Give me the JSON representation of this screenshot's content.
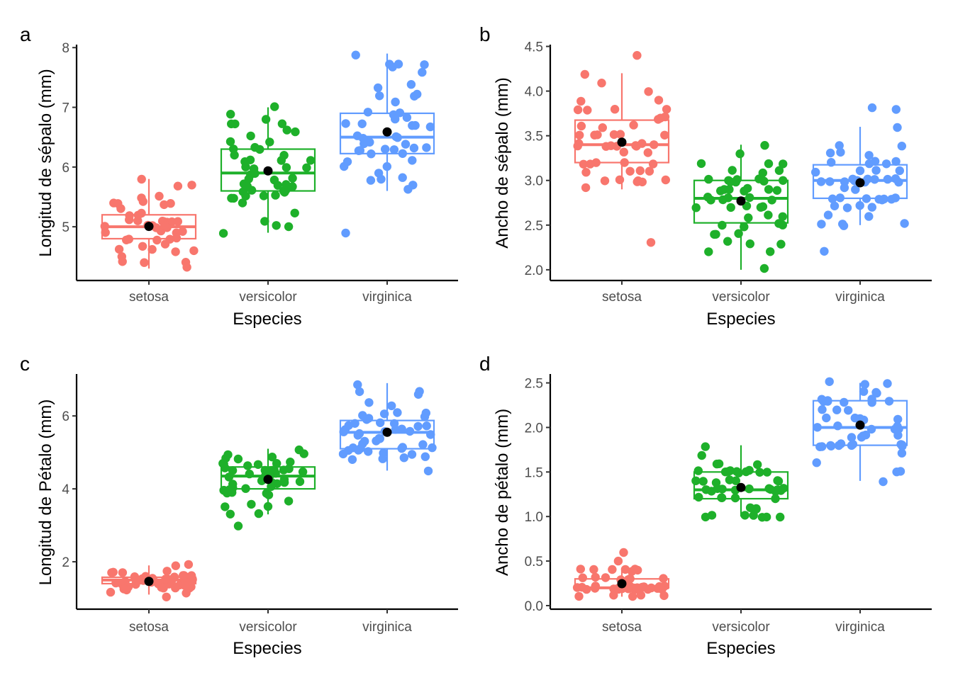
{
  "colors": {
    "setosa": "#F8766D",
    "versicolor": "#1EB02A",
    "virginica": "#619CFF",
    "mean": "#000000"
  },
  "chart_data": [
    {
      "panel": "a",
      "type": "boxplot",
      "xlabel": "Especies",
      "ylabel": "Longitud de sépalo (mm)",
      "categories": [
        "setosa",
        "versicolor",
        "virginica"
      ],
      "ylim": [
        4.1,
        8.05
      ],
      "yticks": [
        5,
        6,
        7,
        8
      ],
      "ytick_labels": [
        "5",
        "6",
        "7",
        "8"
      ],
      "boxes": [
        {
          "name": "setosa",
          "q1": 4.8,
          "median": 5.0,
          "q3": 5.2,
          "whisker_low": 4.3,
          "whisker_high": 5.8,
          "mean": 5.006
        },
        {
          "name": "versicolor",
          "q1": 5.6,
          "median": 5.9,
          "q3": 6.3,
          "whisker_low": 4.9,
          "whisker_high": 7.0,
          "mean": 5.936
        },
        {
          "name": "virginica",
          "q1": 6.225,
          "median": 6.5,
          "q3": 6.9,
          "whisker_low": 5.6,
          "whisker_high": 7.9,
          "mean": 6.588
        }
      ],
      "points": {
        "setosa": [
          5.1,
          4.9,
          4.7,
          4.6,
          5.0,
          5.4,
          4.6,
          5.0,
          4.4,
          4.9,
          5.4,
          4.8,
          4.8,
          4.3,
          5.8,
          5.7,
          5.4,
          5.1,
          5.7,
          5.1,
          5.4,
          5.1,
          4.6,
          5.1,
          4.8,
          5.0,
          5.0,
          5.2,
          5.2,
          4.7,
          4.8,
          5.4,
          5.2,
          5.5,
          4.9,
          5.0,
          5.5,
          4.9,
          4.4,
          5.1,
          5.0,
          4.5,
          4.4,
          5.0,
          5.1,
          4.8,
          5.1,
          4.6,
          5.3,
          5.0
        ],
        "versicolor": [
          7.0,
          6.4,
          6.9,
          5.5,
          6.5,
          5.7,
          6.3,
          4.9,
          6.6,
          5.2,
          5.0,
          5.9,
          6.0,
          6.1,
          5.6,
          6.7,
          5.6,
          5.8,
          6.2,
          5.6,
          5.9,
          6.1,
          6.3,
          6.1,
          6.4,
          6.6,
          6.8,
          6.7,
          6.0,
          5.7,
          5.5,
          5.5,
          5.8,
          6.0,
          5.4,
          6.0,
          6.7,
          6.3,
          5.6,
          5.5,
          5.5,
          6.1,
          5.8,
          5.0,
          5.6,
          5.7,
          5.7,
          6.2,
          5.1,
          5.7
        ],
        "virginica": [
          6.3,
          5.8,
          7.1,
          6.3,
          6.5,
          7.6,
          4.9,
          7.3,
          6.7,
          7.2,
          6.5,
          6.4,
          6.8,
          5.7,
          5.8,
          6.4,
          6.5,
          7.7,
          7.7,
          6.0,
          6.9,
          5.6,
          7.7,
          6.3,
          6.7,
          7.2,
          6.2,
          6.1,
          6.4,
          7.2,
          7.4,
          7.9,
          6.4,
          6.3,
          6.1,
          7.7,
          6.3,
          6.4,
          6.0,
          6.9,
          6.7,
          6.9,
          5.8,
          6.8,
          6.7,
          6.7,
          6.3,
          6.5,
          6.2,
          5.9
        ]
      }
    },
    {
      "panel": "b",
      "type": "boxplot",
      "xlabel": "Especies",
      "ylabel": "Ancho de sépalo (mm)",
      "categories": [
        "setosa",
        "versicolor",
        "virginica"
      ],
      "ylim": [
        1.88,
        4.52
      ],
      "yticks": [
        2.0,
        2.5,
        3.0,
        3.5,
        4.0,
        4.5
      ],
      "ytick_labels": [
        "2.0",
        "2.5",
        "3.0",
        "3.5",
        "4.0",
        "4.5"
      ],
      "boxes": [
        {
          "name": "setosa",
          "q1": 3.2,
          "median": 3.4,
          "q3": 3.675,
          "whisker_low": 2.9,
          "whisker_high": 4.2,
          "mean": 3.428
        },
        {
          "name": "versicolor",
          "q1": 2.525,
          "median": 2.8,
          "q3": 3.0,
          "whisker_low": 2.0,
          "whisker_high": 3.4,
          "mean": 2.77
        },
        {
          "name": "virginica",
          "q1": 2.8,
          "median": 3.0,
          "q3": 3.175,
          "whisker_low": 2.5,
          "whisker_high": 3.6,
          "mean": 2.974
        }
      ],
      "points": {
        "setosa": [
          3.5,
          3.0,
          3.2,
          3.1,
          3.6,
          3.9,
          3.4,
          3.4,
          2.9,
          3.1,
          3.7,
          3.4,
          3.0,
          3.0,
          4.0,
          4.4,
          3.9,
          3.5,
          3.8,
          3.8,
          3.4,
          3.7,
          3.6,
          3.3,
          3.4,
          3.0,
          3.4,
          3.5,
          3.4,
          3.2,
          3.1,
          3.4,
          4.1,
          4.2,
          3.1,
          3.2,
          3.5,
          3.6,
          3.0,
          3.4,
          3.5,
          2.3,
          3.2,
          3.5,
          3.8,
          3.0,
          3.8,
          3.2,
          3.7,
          3.3
        ],
        "versicolor": [
          3.2,
          3.2,
          3.1,
          2.3,
          2.8,
          2.8,
          3.3,
          2.4,
          2.9,
          2.7,
          2.0,
          3.0,
          2.2,
          2.9,
          2.9,
          3.1,
          3.0,
          2.7,
          2.2,
          2.5,
          3.2,
          2.8,
          2.5,
          2.8,
          2.9,
          3.0,
          2.8,
          3.0,
          2.9,
          2.6,
          2.4,
          2.4,
          2.7,
          2.7,
          3.0,
          3.4,
          3.1,
          2.3,
          3.0,
          2.5,
          2.6,
          3.0,
          2.6,
          2.3,
          2.7,
          3.0,
          2.9,
          2.9,
          2.5,
          2.8
        ],
        "virginica": [
          3.3,
          2.7,
          3.0,
          2.9,
          3.0,
          3.0,
          2.5,
          2.9,
          2.5,
          3.6,
          3.2,
          2.7,
          3.0,
          2.5,
          2.8,
          3.2,
          3.0,
          3.8,
          2.6,
          2.2,
          3.2,
          2.8,
          2.8,
          2.7,
          3.3,
          3.2,
          2.8,
          3.0,
          2.8,
          3.0,
          2.8,
          3.8,
          2.8,
          2.8,
          2.6,
          3.0,
          3.4,
          3.1,
          3.0,
          3.1,
          3.1,
          3.1,
          2.7,
          3.2,
          3.3,
          3.0,
          2.5,
          3.0,
          3.4,
          3.0
        ]
      }
    },
    {
      "panel": "c",
      "type": "boxplot",
      "xlabel": "Especies",
      "ylabel": "Longitud de Pétalo (mm)",
      "categories": [
        "setosa",
        "versicolor",
        "virginica"
      ],
      "ylim": [
        0.7,
        7.15
      ],
      "yticks": [
        2,
        4,
        6
      ],
      "ytick_labels": [
        "2",
        "4",
        "6"
      ],
      "boxes": [
        {
          "name": "setosa",
          "q1": 1.4,
          "median": 1.5,
          "q3": 1.575,
          "whisker_low": 1.1,
          "whisker_high": 1.9,
          "mean": 1.462
        },
        {
          "name": "versicolor",
          "q1": 4.0,
          "median": 4.35,
          "q3": 4.6,
          "whisker_low": 3.3,
          "whisker_high": 5.1,
          "mean": 4.26
        },
        {
          "name": "virginica",
          "q1": 5.1,
          "median": 5.55,
          "q3": 5.875,
          "whisker_low": 4.5,
          "whisker_high": 6.9,
          "mean": 5.552
        }
      ],
      "points": {
        "setosa": [
          1.4,
          1.4,
          1.3,
          1.5,
          1.4,
          1.7,
          1.4,
          1.5,
          1.4,
          1.5,
          1.5,
          1.6,
          1.4,
          1.1,
          1.2,
          1.5,
          1.3,
          1.4,
          1.7,
          1.5,
          1.7,
          1.5,
          1.0,
          1.7,
          1.9,
          1.6,
          1.6,
          1.5,
          1.4,
          1.6,
          1.6,
          1.5,
          1.5,
          1.4,
          1.5,
          1.2,
          1.3,
          1.4,
          1.3,
          1.5,
          1.3,
          1.3,
          1.3,
          1.6,
          1.9,
          1.4,
          1.6,
          1.4,
          1.5,
          1.4
        ],
        "versicolor": [
          4.7,
          4.5,
          4.9,
          4.0,
          4.6,
          4.5,
          4.7,
          3.3,
          4.6,
          3.9,
          3.5,
          4.2,
          4.0,
          4.7,
          3.6,
          4.4,
          4.5,
          4.1,
          4.5,
          3.9,
          4.8,
          4.0,
          4.9,
          4.7,
          4.3,
          4.4,
          4.8,
          5.0,
          4.5,
          3.5,
          3.8,
          3.7,
          3.9,
          5.1,
          4.5,
          4.5,
          4.7,
          4.4,
          4.1,
          4.0,
          4.4,
          4.6,
          4.0,
          3.3,
          4.2,
          4.2,
          4.2,
          4.3,
          3.0,
          4.1
        ],
        "virginica": [
          6.0,
          5.1,
          5.9,
          5.6,
          5.8,
          6.6,
          4.5,
          6.3,
          5.8,
          6.1,
          5.1,
          5.3,
          5.5,
          5.0,
          5.1,
          5.3,
          5.5,
          6.7,
          6.9,
          5.0,
          5.7,
          4.9,
          6.7,
          4.9,
          5.7,
          6.0,
          4.8,
          4.9,
          5.6,
          5.8,
          6.1,
          6.4,
          5.6,
          5.1,
          5.6,
          6.1,
          5.6,
          5.5,
          4.8,
          5.4,
          5.6,
          5.1,
          5.1,
          5.9,
          5.7,
          5.2,
          5.0,
          5.2,
          5.4,
          5.1
        ]
      }
    },
    {
      "panel": "d",
      "type": "boxplot",
      "xlabel": "Especies",
      "ylabel": "Ancho de pétalo (mm)",
      "categories": [
        "setosa",
        "versicolor",
        "virginica"
      ],
      "ylim": [
        -0.04,
        2.6
      ],
      "yticks": [
        0.0,
        0.5,
        1.0,
        1.5,
        2.0,
        2.5
      ],
      "ytick_labels": [
        "0.0",
        "0.5",
        "1.0",
        "1.5",
        "2.0",
        "2.5"
      ],
      "boxes": [
        {
          "name": "setosa",
          "q1": 0.2,
          "median": 0.2,
          "q3": 0.3,
          "whisker_low": 0.1,
          "whisker_high": 0.4,
          "mean": 0.246
        },
        {
          "name": "versicolor",
          "q1": 1.2,
          "median": 1.3,
          "q3": 1.5,
          "whisker_low": 1.0,
          "whisker_high": 1.8,
          "mean": 1.326
        },
        {
          "name": "virginica",
          "q1": 1.8,
          "median": 2.0,
          "q3": 2.3,
          "whisker_low": 1.4,
          "whisker_high": 2.5,
          "mean": 2.026
        }
      ],
      "points": {
        "setosa": [
          0.2,
          0.2,
          0.2,
          0.2,
          0.2,
          0.4,
          0.3,
          0.2,
          0.2,
          0.1,
          0.2,
          0.2,
          0.1,
          0.1,
          0.2,
          0.4,
          0.4,
          0.3,
          0.3,
          0.3,
          0.2,
          0.4,
          0.2,
          0.5,
          0.2,
          0.2,
          0.4,
          0.2,
          0.2,
          0.2,
          0.2,
          0.4,
          0.1,
          0.2,
          0.2,
          0.2,
          0.2,
          0.1,
          0.2,
          0.2,
          0.3,
          0.3,
          0.2,
          0.6,
          0.4,
          0.3,
          0.2,
          0.2,
          0.2,
          0.2
        ],
        "versicolor": [
          1.4,
          1.5,
          1.5,
          1.3,
          1.5,
          1.3,
          1.6,
          1.0,
          1.3,
          1.4,
          1.0,
          1.5,
          1.0,
          1.4,
          1.3,
          1.4,
          1.5,
          1.0,
          1.5,
          1.1,
          1.8,
          1.3,
          1.5,
          1.2,
          1.3,
          1.4,
          1.4,
          1.7,
          1.5,
          1.0,
          1.1,
          1.0,
          1.2,
          1.6,
          1.5,
          1.6,
          1.5,
          1.3,
          1.3,
          1.3,
          1.2,
          1.4,
          1.2,
          1.0,
          1.3,
          1.2,
          1.3,
          1.3,
          1.1,
          1.3
        ],
        "virginica": [
          2.5,
          1.9,
          2.1,
          1.8,
          2.2,
          2.1,
          1.7,
          1.8,
          1.8,
          2.5,
          2.0,
          1.9,
          2.1,
          2.0,
          2.4,
          2.3,
          1.8,
          2.2,
          2.3,
          1.5,
          2.3,
          2.0,
          2.0,
          1.8,
          2.1,
          1.8,
          1.8,
          1.8,
          2.1,
          1.6,
          1.9,
          2.0,
          2.2,
          1.5,
          1.4,
          2.3,
          2.4,
          1.8,
          1.8,
          2.1,
          2.4,
          2.3,
          1.9,
          2.3,
          2.5,
          2.3,
          1.9,
          2.0,
          2.3,
          1.8
        ]
      }
    }
  ]
}
